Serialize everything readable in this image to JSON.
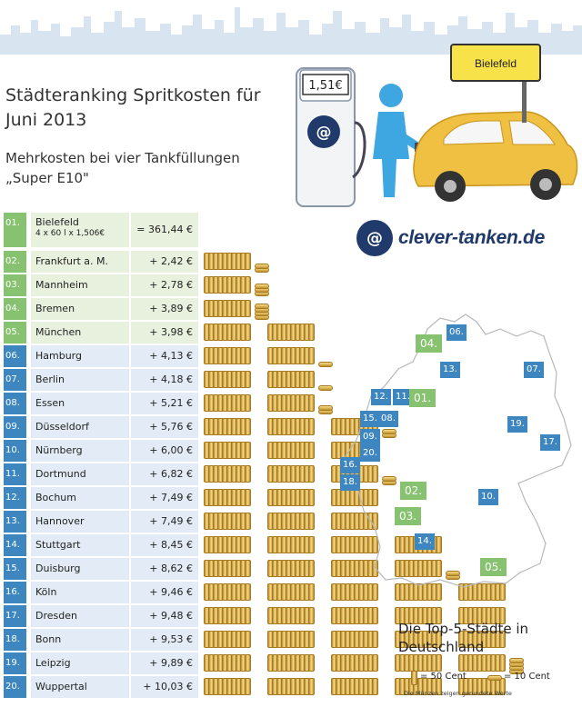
{
  "title": "Städteranking Spritkosten für Juni 2013",
  "subtitle": "Mehrkosten bei vier Tankfüllungen „Super E10\"",
  "scene": {
    "price_display": "1,51€",
    "sign": "Bielefeld",
    "pump_logo": "@"
  },
  "brand": {
    "logo": "@",
    "name": "clever-tanken.de"
  },
  "colors": {
    "green": "#86c26f",
    "blue": "#3e86c0",
    "green_row": "#e7f1de",
    "blue_row": "#e3ecf6",
    "coin": "#e6b94c"
  },
  "ranking": [
    {
      "rank": "01.",
      "city": "Bielefeld",
      "sub": "4 x 60 l x 1,506€",
      "value": "= 361,44 €",
      "tier": "green",
      "full": 0,
      "half": 0
    },
    {
      "rank": "02.",
      "city": "Frankfurt a. M.",
      "value": "+ 2,42 €",
      "tier": "green",
      "full": 1,
      "half": 2
    },
    {
      "rank": "03.",
      "city": "Mannheim",
      "value": "+ 2,78 €",
      "tier": "green",
      "full": 1,
      "half": 3
    },
    {
      "rank": "04.",
      "city": "Bremen",
      "value": "+ 3,89 €",
      "tier": "green",
      "full": 1,
      "half": 4
    },
    {
      "rank": "05.",
      "city": "München",
      "value": "+ 3,98 €",
      "tier": "green",
      "full": 2,
      "half": 0
    },
    {
      "rank": "06.",
      "city": "Hamburg",
      "value": "+ 4,13 €",
      "tier": "blue",
      "full": 2,
      "half": 1
    },
    {
      "rank": "07.",
      "city": "Berlin",
      "value": "+ 4,18 €",
      "tier": "blue",
      "full": 2,
      "half": 1
    },
    {
      "rank": "08.",
      "city": "Essen",
      "value": "+ 5,21 €",
      "tier": "blue",
      "full": 2,
      "half": 2
    },
    {
      "rank": "09.",
      "city": "Düsseldorf",
      "value": "+ 5,76 €",
      "tier": "blue",
      "full": 3,
      "half": 2
    },
    {
      "rank": "10.",
      "city": "Nürnberg",
      "value": "+ 6,00 €",
      "tier": "blue",
      "full": 3,
      "half": 0
    },
    {
      "rank": "11.",
      "city": "Dortmund",
      "value": "+ 6,82 €",
      "tier": "blue",
      "full": 3,
      "half": 2
    },
    {
      "rank": "12.",
      "city": "Bochum",
      "value": "+ 7,49 €",
      "tier": "blue",
      "full": 3,
      "half": 0
    },
    {
      "rank": "13.",
      "city": "Hannover",
      "value": "+ 7,49 €",
      "tier": "blue",
      "full": 3,
      "half": 0
    },
    {
      "rank": "14.",
      "city": "Stuttgart",
      "value": "+ 8,45 €",
      "tier": "blue",
      "full": 4,
      "half": 0
    },
    {
      "rank": "15.",
      "city": "Duisburg",
      "value": "+ 8,62 €",
      "tier": "blue",
      "full": 4,
      "half": 2
    },
    {
      "rank": "16.",
      "city": "Köln",
      "value": "+ 9,46 €",
      "tier": "blue",
      "full": 5,
      "half": 0
    },
    {
      "rank": "17.",
      "city": "Dresden",
      "value": "+ 9,48 €",
      "tier": "blue",
      "full": 5,
      "half": 0
    },
    {
      "rank": "18.",
      "city": "Bonn",
      "value": "+ 9,53 €",
      "tier": "blue",
      "full": 5,
      "half": 0
    },
    {
      "rank": "19.",
      "city": "Leipzig",
      "value": "+ 9,89 €",
      "tier": "blue",
      "full": 5,
      "half": 4
    },
    {
      "rank": "20.",
      "city": "Wuppertal",
      "value": "+ 10,03 €",
      "tier": "blue",
      "full": 5,
      "half": 0
    }
  ],
  "map": {
    "caption": "Die Top-5-Städte in Deutschland",
    "markers": [
      "06.",
      "04.",
      "13.",
      "07.",
      "12.",
      "11.",
      "01.",
      "15.",
      "08.",
      "09.",
      "19.",
      "17.",
      "20.",
      "16.",
      "18.",
      "02.",
      "10.",
      "03.",
      "14.",
      "05."
    ]
  },
  "legend": {
    "full": "= 50 Cent",
    "half": "= 10 Cent",
    "note": "Die Münzen zeigen gerundete Werte"
  }
}
